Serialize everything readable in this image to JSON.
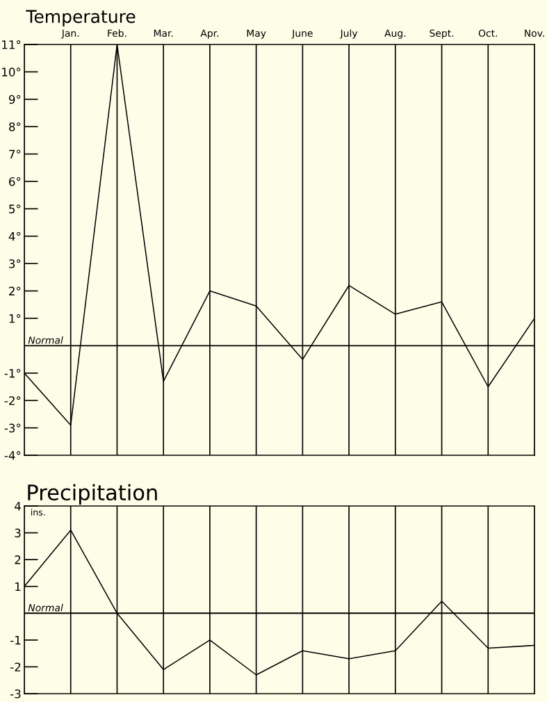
{
  "chart_data": [
    {
      "type": "line",
      "title": "Temperature",
      "categories": [
        null,
        "Jan.",
        "Feb.",
        "Mar.",
        "Apr.",
        "May",
        "June",
        "July",
        "Aug.",
        "Sept.",
        "Oct.",
        "Nov."
      ],
      "series": [
        {
          "color": "#000000",
          "values": [
            -1.0,
            -2.9,
            11.0,
            -1.3,
            2.0,
            1.45,
            -0.5,
            2.2,
            1.15,
            1.6,
            -1.5,
            1.0
          ]
        }
      ],
      "ylim": [
        -4,
        11
      ],
      "yticks": [
        {
          "value": 11,
          "label": "11°"
        },
        {
          "value": 10,
          "label": "10°"
        },
        {
          "value": 9,
          "label": "9°"
        },
        {
          "value": 8,
          "label": "8°"
        },
        {
          "value": 7,
          "label": "7°"
        },
        {
          "value": 6,
          "label": "6°"
        },
        {
          "value": 5,
          "label": "5°"
        },
        {
          "value": 4,
          "label": "4°"
        },
        {
          "value": 3,
          "label": "3°"
        },
        {
          "value": 2,
          "label": "2°"
        },
        {
          "value": 1,
          "label": "1°"
        },
        {
          "value": -1,
          "label": "-1°"
        },
        {
          "value": -2,
          "label": "-2°"
        },
        {
          "value": -3,
          "label": "-3°"
        },
        {
          "value": -4,
          "label": "-4°"
        }
      ],
      "ref_lines": [
        {
          "axis": "y",
          "value": 0,
          "label": "Normal",
          "color": "#000000"
        }
      ],
      "grid": "x",
      "marker": "none",
      "line_style": "solid"
    },
    {
      "type": "line",
      "title": "Precipitation",
      "categories": [
        null,
        null,
        null,
        null,
        null,
        null,
        null,
        null,
        null,
        null,
        null,
        null
      ],
      "series": [
        {
          "color": "#000000",
          "values": [
            1.0,
            3.1,
            0.0,
            -2.1,
            -1.0,
            -2.3,
            -1.4,
            -1.7,
            -1.4,
            0.45,
            -1.3,
            -1.2
          ]
        }
      ],
      "ylim": [
        -3,
        4
      ],
      "yticks": [
        4,
        3,
        2,
        1,
        -1,
        -2,
        -3
      ],
      "ref_lines": [
        {
          "axis": "y",
          "value": 0,
          "label": "Normal",
          "color": "#000000"
        }
      ],
      "annotations": [
        "ins."
      ],
      "grid": "x",
      "marker": "none",
      "line_style": "solid",
      "tick_labels": "y"
    }
  ]
}
